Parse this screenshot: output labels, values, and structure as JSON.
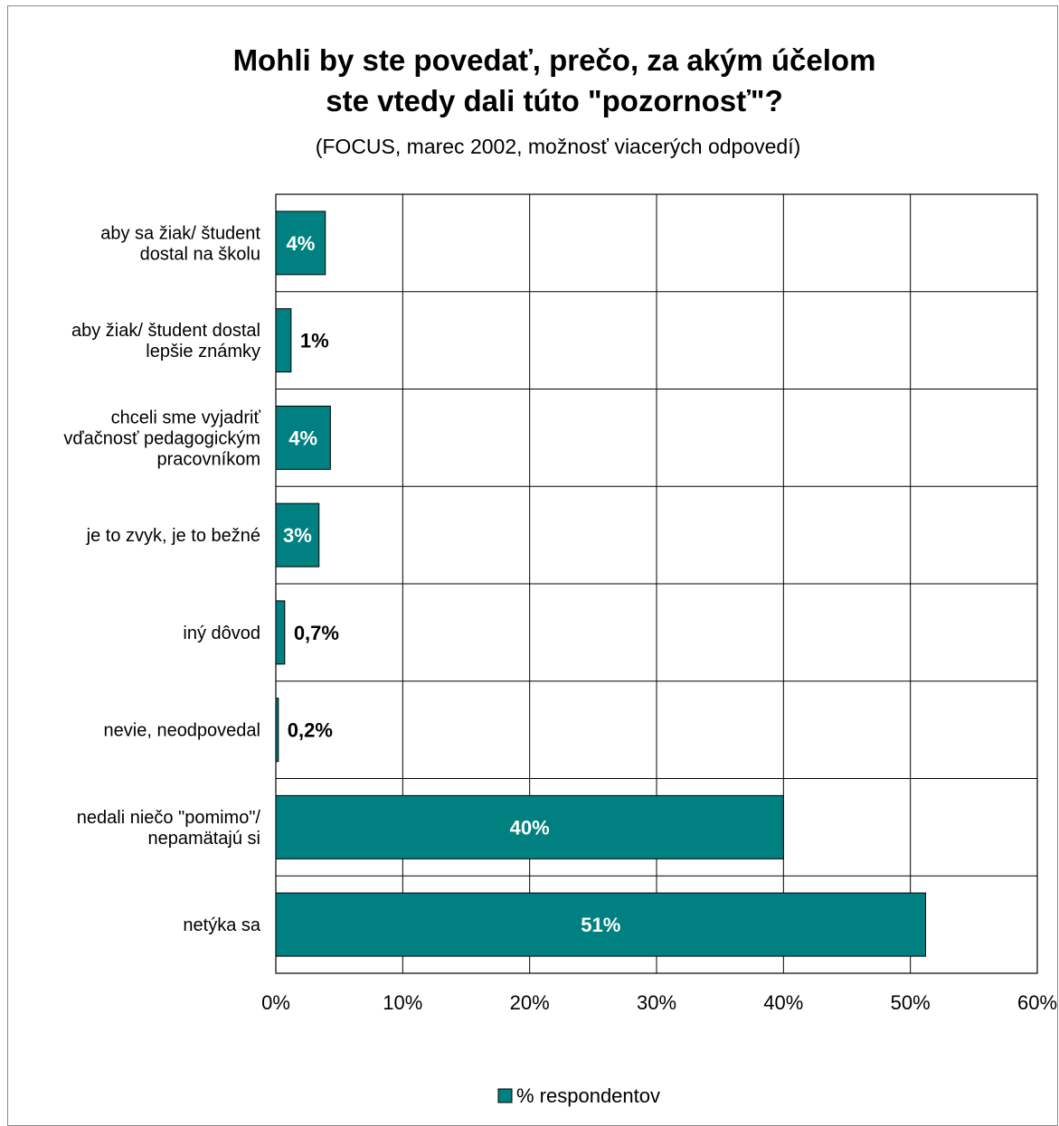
{
  "chart_data": {
    "type": "bar",
    "orientation": "horizontal",
    "title_lines": [
      "Mohli by ste povedať, prečo, za akým účelom",
      "ste vtedy dali túto \"pozornosť\"?"
    ],
    "subtitle": "(FOCUS, marec 2002, možnosť viacerých odpovedí)",
    "categories": [
      [
        "aby sa žiak/ študent",
        "dostal na školu"
      ],
      [
        "aby žiak/ študent dostal",
        "lepšie známky"
      ],
      [
        "chceli sme vyjadriť",
        "vďačnosť pedagogickým",
        "pracovníkom"
      ],
      [
        "je to zvyk, je to bežné"
      ],
      [
        "iný dôvod"
      ],
      [
        "nevie, neodpovedal"
      ],
      [
        "nedali niečo \"pomimo\"/",
        "nepamätajú si"
      ],
      [
        "netýka sa"
      ]
    ],
    "series": [
      {
        "name": "% respondentov",
        "color": "#008080",
        "values": [
          3.9,
          1.2,
          4.3,
          3.4,
          0.7,
          0.2,
          40.0,
          51.2
        ],
        "labels": [
          "4%",
          "1%",
          "4%",
          "3%",
          "0,7%",
          "0,2%",
          "40%",
          "51%"
        ]
      }
    ],
    "xlim": [
      0,
      60
    ],
    "xticks": [
      0,
      10,
      20,
      30,
      40,
      50,
      60
    ],
    "xtick_labels": [
      "0%",
      "10%",
      "20%",
      "30%",
      "40%",
      "50%",
      "60%"
    ],
    "grid": true,
    "legend_position": "bottom"
  }
}
